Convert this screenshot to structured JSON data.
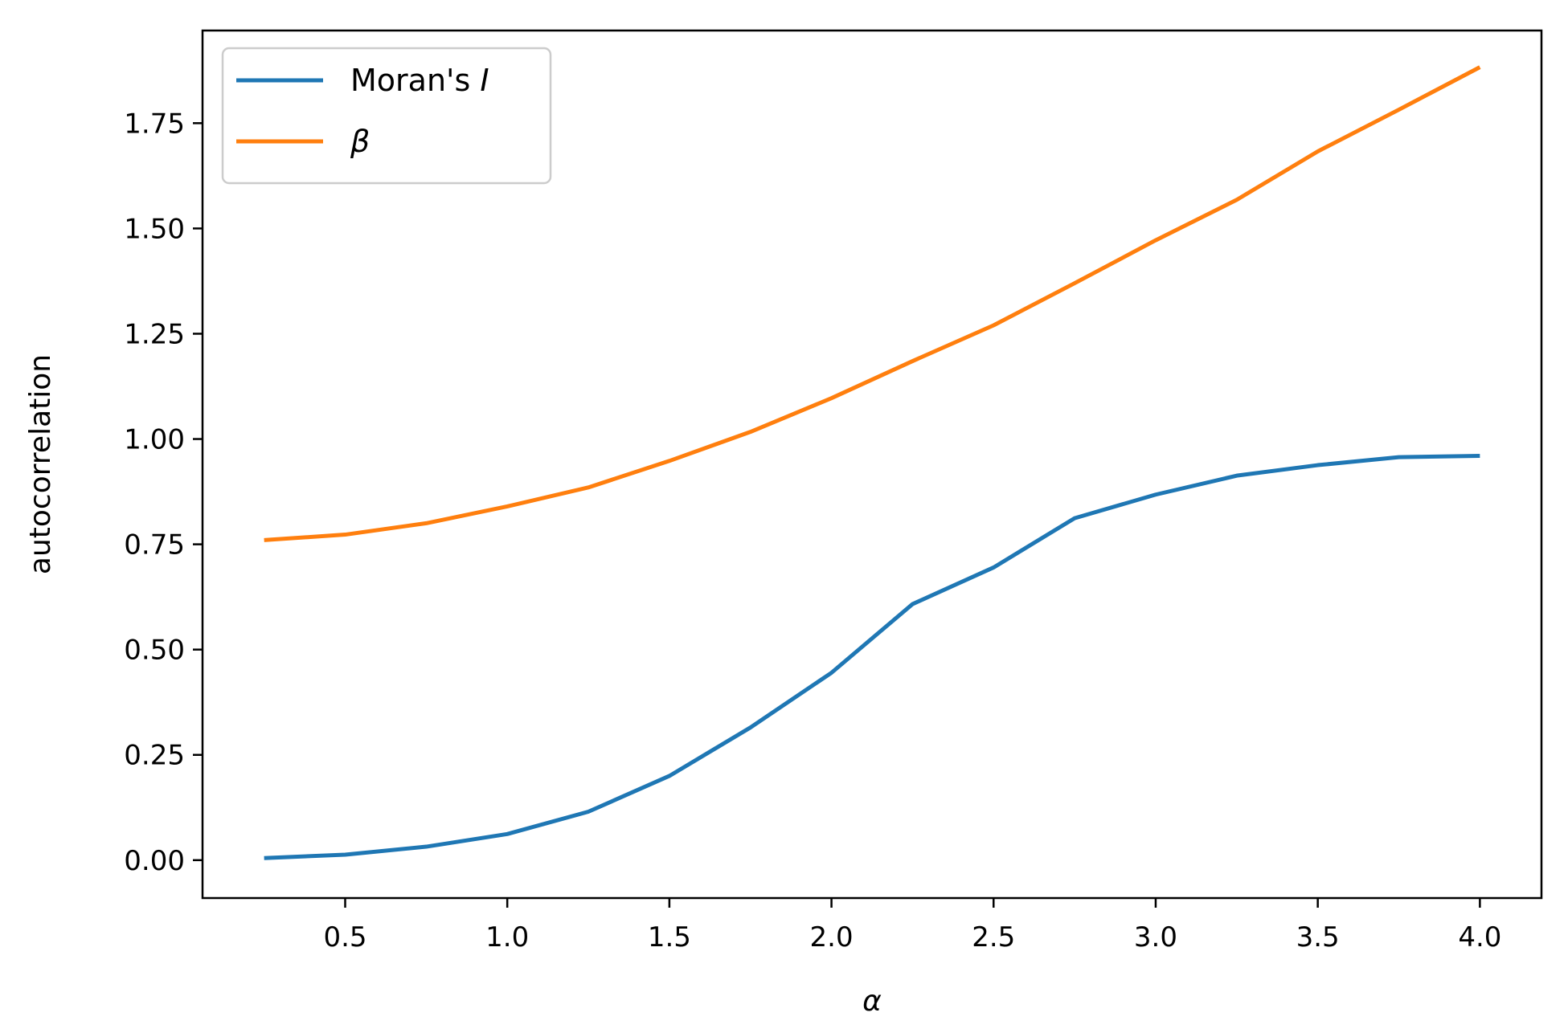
{
  "chart_data": {
    "type": "line",
    "xlabel": "α",
    "ylabel": "autocorrelation",
    "xlim": [
      0.06,
      4.19
    ],
    "ylim": [
      -0.09,
      1.97
    ],
    "xticks": [
      "0.5",
      "1.0",
      "1.5",
      "2.0",
      "2.5",
      "3.0",
      "3.5",
      "4.0"
    ],
    "yticks": [
      "0.00",
      "0.25",
      "0.50",
      "0.75",
      "1.00",
      "1.25",
      "1.50",
      "1.75"
    ],
    "legend_position": "top-left",
    "x": [
      0.25,
      0.5,
      0.75,
      1.0,
      1.25,
      1.5,
      1.75,
      2.0,
      2.25,
      2.5,
      2.75,
      3.0,
      3.25,
      3.5,
      3.75,
      4.0
    ],
    "series": [
      {
        "name": "Moran's I",
        "legend_main": "Moran's ",
        "legend_italic": "I",
        "color": "#1f77b4",
        "values": [
          0.005,
          0.013,
          0.032,
          0.062,
          0.115,
          0.2,
          0.315,
          0.445,
          0.608,
          0.695,
          0.812,
          0.868,
          0.913,
          0.938,
          0.957,
          0.96
        ]
      },
      {
        "name": "β",
        "legend_main": "",
        "legend_italic": "β",
        "color": "#ff7f0e",
        "values": [
          0.76,
          0.773,
          0.8,
          0.84,
          0.885,
          0.948,
          1.017,
          1.097,
          1.185,
          1.27,
          1.37,
          1.472,
          1.568,
          1.683,
          1.782,
          1.883
        ]
      }
    ]
  }
}
